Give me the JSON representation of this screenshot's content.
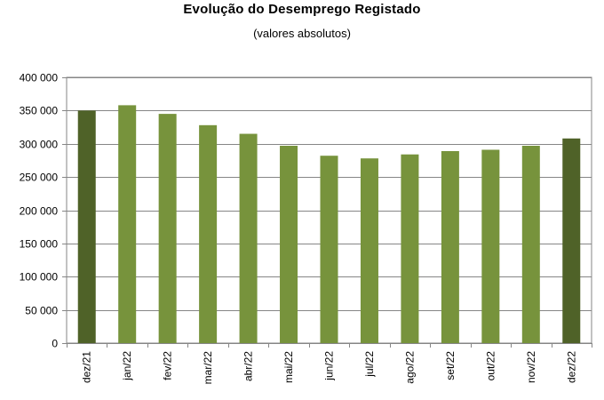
{
  "chart_data": {
    "type": "bar",
    "title": "Evolução do Desemprego Registado",
    "subtitle": "(valores absolutos)",
    "xlabel": "",
    "ylabel": "",
    "categories": [
      "dez/21",
      "jan/22",
      "fev/22",
      "mar/22",
      "abr/22",
      "mai/22",
      "jun/22",
      "jul/22",
      "ago/22",
      "set/22",
      "out/22",
      "nov/22",
      "dez/22"
    ],
    "values": [
      350000,
      358000,
      345000,
      328000,
      315000,
      297000,
      282000,
      278000,
      284000,
      289000,
      291000,
      297000,
      308000
    ],
    "highlight": [
      true,
      false,
      false,
      false,
      false,
      false,
      false,
      false,
      false,
      false,
      false,
      false,
      true
    ],
    "ylim": [
      0,
      400000
    ],
    "yticks": [
      0,
      50000,
      100000,
      150000,
      200000,
      250000,
      300000,
      350000,
      400000
    ],
    "ytick_labels": [
      "0",
      "50 000",
      "100 000",
      "150 000",
      "200 000",
      "250 000",
      "300 000",
      "350 000",
      "400 000"
    ],
    "grid": true,
    "legend": "none",
    "colors": {
      "bar": "#77933c",
      "highlight": "#4f6228",
      "grid": "#868686",
      "axis": "#868686"
    }
  }
}
